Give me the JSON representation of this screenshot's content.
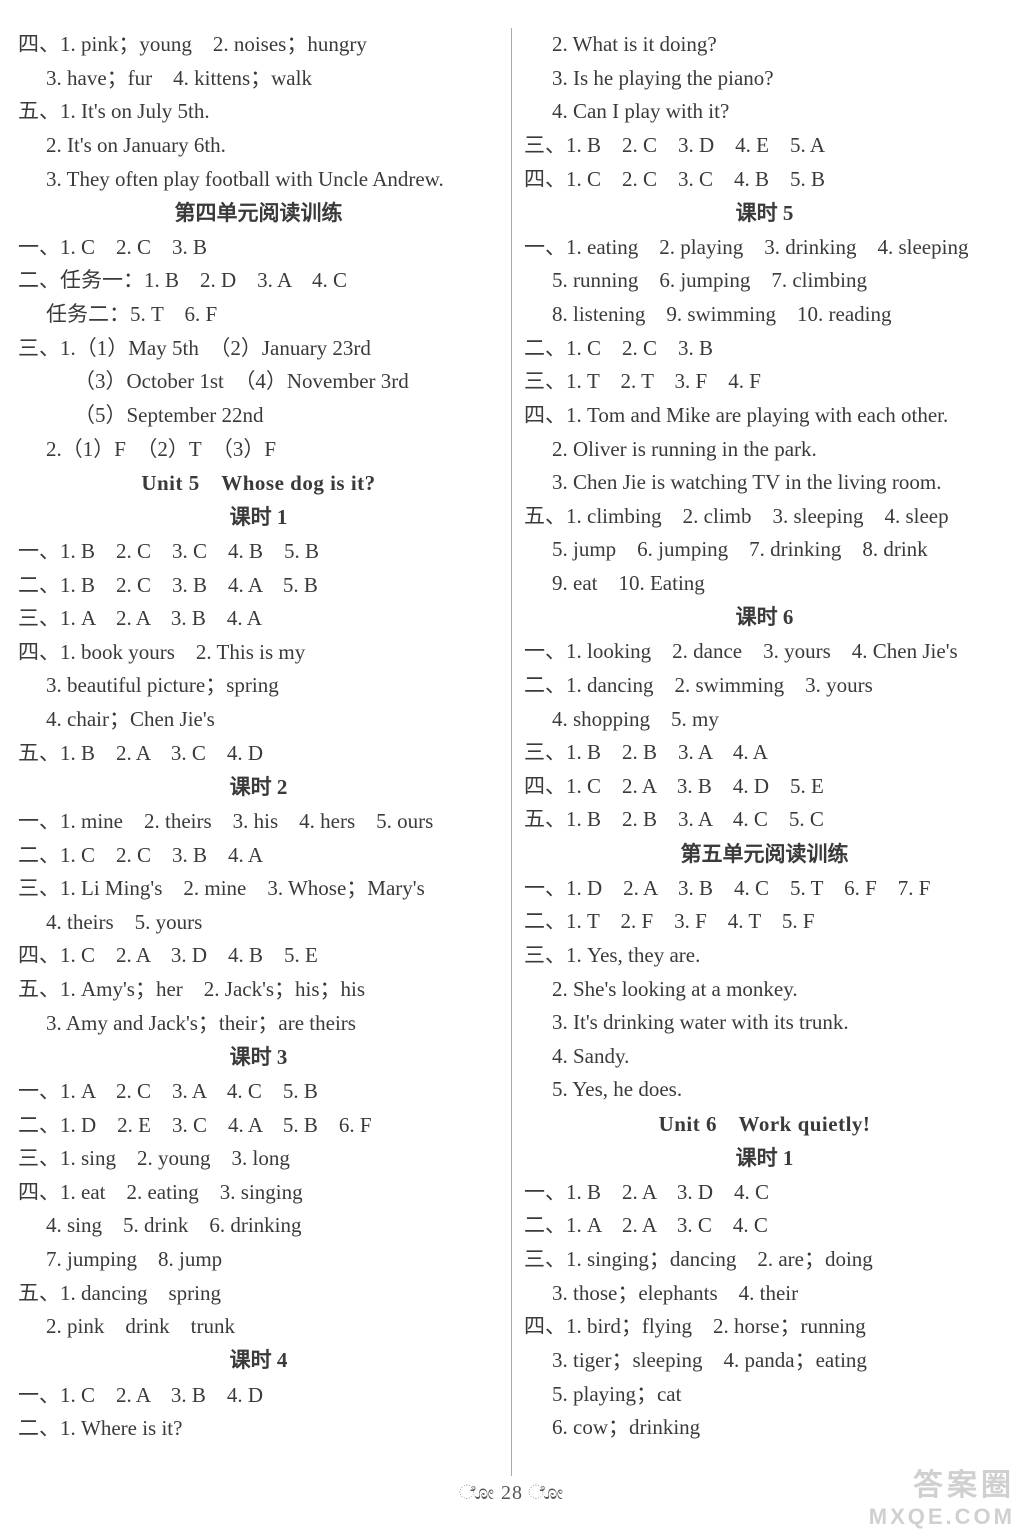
{
  "footer": "ೋ 28 ೋ",
  "watermark": {
    "line1": "答案圈",
    "line2": "MXQE.COM"
  },
  "left": [
    {
      "cls": "line",
      "t": "四、1. pink；young　2. noises；hungry"
    },
    {
      "cls": "line indent1",
      "t": "3. have；fur　4. kittens；walk"
    },
    {
      "cls": "line",
      "t": "五、1. It's on July 5th."
    },
    {
      "cls": "line indent1",
      "t": "2. It's on January 6th."
    },
    {
      "cls": "line indent1",
      "t": "3. They often play football with Uncle Andrew."
    },
    {
      "cls": "sec-title",
      "t": "第四单元阅读训练"
    },
    {
      "cls": "line",
      "t": "一、1. C　2. C　3. B"
    },
    {
      "cls": "line",
      "t": "二、任务一：1. B　2. D　3. A　4. C"
    },
    {
      "cls": "line indent1",
      "t": "任务二：5. T　6. F"
    },
    {
      "cls": "line",
      "t": "三、1.（1）May 5th　（2）January 23rd"
    },
    {
      "cls": "line indent2",
      "t": "（3）October 1st　（4）November 3rd"
    },
    {
      "cls": "line indent2",
      "t": "（5）September 22nd"
    },
    {
      "cls": "line indent1",
      "t": "2.（1）F　（2）T　（3）F"
    },
    {
      "cls": "unit-title",
      "t": "Unit 5　Whose dog is it?"
    },
    {
      "cls": "sec-title",
      "t": "课时 1"
    },
    {
      "cls": "line",
      "t": "一、1. B　2. C　3. C　4. B　5. B"
    },
    {
      "cls": "line",
      "t": "二、1. B　2. C　3. B　4. A　5. B"
    },
    {
      "cls": "line",
      "t": "三、1. A　2. A　3. B　4. A"
    },
    {
      "cls": "line",
      "t": "四、1. book yours　2. This is my"
    },
    {
      "cls": "line indent1",
      "t": "3. beautiful picture；spring"
    },
    {
      "cls": "line indent1",
      "t": "4. chair；Chen Jie's"
    },
    {
      "cls": "line",
      "t": "五、1. B　2. A　3. C　4. D"
    },
    {
      "cls": "sec-title",
      "t": "课时 2"
    },
    {
      "cls": "line",
      "t": "一、1. mine　2. theirs　3. his　4. hers　5. ours"
    },
    {
      "cls": "line",
      "t": "二、1. C　2. C　3. B　4. A"
    },
    {
      "cls": "line",
      "t": "三、1. Li Ming's　2. mine　3. Whose；Mary's"
    },
    {
      "cls": "line indent1",
      "t": "4. theirs　5. yours"
    },
    {
      "cls": "line",
      "t": "四、1. C　2. A　3. D　4. B　5. E"
    },
    {
      "cls": "line",
      "t": "五、1. Amy's；her　2. Jack's；his；his"
    },
    {
      "cls": "line indent1",
      "t": "3. Amy and Jack's；their；are theirs"
    },
    {
      "cls": "sec-title",
      "t": "课时 3"
    },
    {
      "cls": "line",
      "t": "一、1. A　2. C　3. A　4. C　5. B"
    },
    {
      "cls": "line",
      "t": "二、1. D　2. E　3. C　4. A　5. B　6. F"
    },
    {
      "cls": "line",
      "t": "三、1. sing　2. young　3. long"
    },
    {
      "cls": "line",
      "t": "四、1. eat　2. eating　3. singing"
    },
    {
      "cls": "line indent1",
      "t": "4. sing　5. drink　6. drinking"
    },
    {
      "cls": "line indent1",
      "t": "7. jumping　8. jump"
    },
    {
      "cls": "line",
      "t": "五、1. dancing　spring"
    },
    {
      "cls": "line indent1",
      "t": "2. pink　drink　trunk"
    },
    {
      "cls": "sec-title",
      "t": "课时 4"
    },
    {
      "cls": "line",
      "t": "一、1. C　2. A　3. B　4. D"
    },
    {
      "cls": "line",
      "t": "二、1. Where is it?"
    }
  ],
  "right": [
    {
      "cls": "line indent1",
      "t": "2. What is it doing?"
    },
    {
      "cls": "line indent1",
      "t": "3. Is he playing the piano?"
    },
    {
      "cls": "line indent1",
      "t": "4. Can I play with it?"
    },
    {
      "cls": "line",
      "t": "三、1. B　2. C　3. D　4. E　5. A"
    },
    {
      "cls": "line",
      "t": "四、1. C　2. C　3. C　4. B　5. B"
    },
    {
      "cls": "sec-title",
      "t": "课时 5"
    },
    {
      "cls": "line",
      "t": "一、1. eating　2. playing　3. drinking　4. sleeping"
    },
    {
      "cls": "line indent1",
      "t": "5. running　6. jumping　7. climbing"
    },
    {
      "cls": "line indent1",
      "t": "8. listening　9. swimming　10. reading"
    },
    {
      "cls": "line",
      "t": "二、1. C　2. C　3. B"
    },
    {
      "cls": "line",
      "t": "三、1. T　2. T　3. F　4. F"
    },
    {
      "cls": "line",
      "t": "四、1. Tom and Mike are playing with each other."
    },
    {
      "cls": "line indent1",
      "t": "2. Oliver is running in the park."
    },
    {
      "cls": "line indent1",
      "t": "3. Chen Jie is watching TV in the living room."
    },
    {
      "cls": "line",
      "t": "五、1. climbing　2. climb　3. sleeping　4. sleep"
    },
    {
      "cls": "line indent1",
      "t": "5. jump　6. jumping　7. drinking　8. drink"
    },
    {
      "cls": "line indent1",
      "t": "9. eat　10. Eating"
    },
    {
      "cls": "sec-title",
      "t": "课时 6"
    },
    {
      "cls": "line",
      "t": "一、1. looking　2. dance　3. yours　4. Chen Jie's"
    },
    {
      "cls": "line",
      "t": "二、1. dancing　2. swimming　3. yours"
    },
    {
      "cls": "line indent1",
      "t": "4. shopping　5. my"
    },
    {
      "cls": "line",
      "t": "三、1. B　2. B　3. A　4. A"
    },
    {
      "cls": "line",
      "t": "四、1. C　2. A　3. B　4. D　5. E"
    },
    {
      "cls": "line",
      "t": "五、1. B　2. B　3. A　4. C　5. C"
    },
    {
      "cls": "sec-title",
      "t": "第五单元阅读训练"
    },
    {
      "cls": "line",
      "t": "一、1. D　2. A　3. B　4. C　5. T　6. F　7. F"
    },
    {
      "cls": "line",
      "t": "二、1. T　2. F　3. F　4. T　5. F"
    },
    {
      "cls": "line",
      "t": "三、1. Yes, they are."
    },
    {
      "cls": "line indent1",
      "t": "2. She's looking at a monkey."
    },
    {
      "cls": "line indent1",
      "t": "3. It's drinking water with its trunk."
    },
    {
      "cls": "line indent1",
      "t": "4. Sandy."
    },
    {
      "cls": "line indent1",
      "t": "5. Yes, he does."
    },
    {
      "cls": "unit-title",
      "t": "Unit 6　Work quietly!"
    },
    {
      "cls": "sec-title",
      "t": "课时 1"
    },
    {
      "cls": "line",
      "t": "一、1. B　2. A　3. D　4. C"
    },
    {
      "cls": "line",
      "t": "二、1. A　2. A　3. C　4. C"
    },
    {
      "cls": "line",
      "t": "三、1. singing；dancing　2. are；doing"
    },
    {
      "cls": "line indent1",
      "t": "3. those；elephants　4. their"
    },
    {
      "cls": "line",
      "t": "四、1. bird；flying　2. horse；running"
    },
    {
      "cls": "line indent1",
      "t": "3. tiger；sleeping　4. panda；eating"
    },
    {
      "cls": "line indent1",
      "t": "5. playing；cat"
    },
    {
      "cls": "line indent1",
      "t": "6. cow；drinking"
    }
  ]
}
